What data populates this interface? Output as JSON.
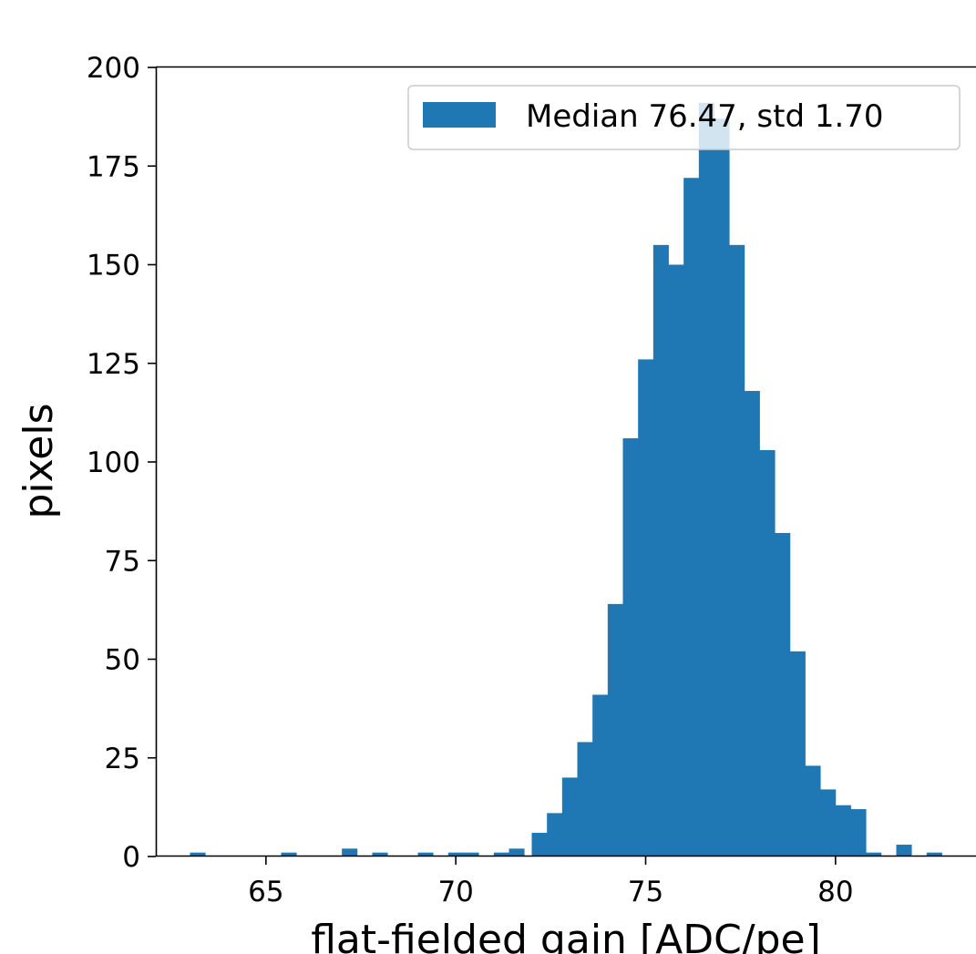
{
  "chart_data": {
    "type": "bar",
    "title": "",
    "xlabel": "flat-fielded gain [ADC/pe]",
    "ylabel": "pixels",
    "xlim": [
      62.1,
      83.7
    ],
    "ylim": [
      0,
      200
    ],
    "xticks": [
      65,
      70,
      75,
      80
    ],
    "yticks": [
      0,
      25,
      50,
      75,
      100,
      125,
      150,
      175,
      200
    ],
    "bin_width": 0.4,
    "grid": false,
    "legend_position": "upper-right",
    "series": [
      {
        "name": "Median 76.47, std 1.70",
        "color": "#1f77b4",
        "bins": [
          {
            "x": 63.0,
            "count": 1
          },
          {
            "x": 65.4,
            "count": 1
          },
          {
            "x": 67.0,
            "count": 2
          },
          {
            "x": 67.8,
            "count": 1
          },
          {
            "x": 69.0,
            "count": 1
          },
          {
            "x": 69.8,
            "count": 1
          },
          {
            "x": 70.2,
            "count": 1
          },
          {
            "x": 71.0,
            "count": 1
          },
          {
            "x": 71.4,
            "count": 2
          },
          {
            "x": 72.0,
            "count": 6
          },
          {
            "x": 72.4,
            "count": 11
          },
          {
            "x": 72.8,
            "count": 20
          },
          {
            "x": 73.2,
            "count": 29
          },
          {
            "x": 73.6,
            "count": 41
          },
          {
            "x": 74.0,
            "count": 64
          },
          {
            "x": 74.4,
            "count": 106
          },
          {
            "x": 74.8,
            "count": 126
          },
          {
            "x": 75.2,
            "count": 155
          },
          {
            "x": 75.6,
            "count": 150
          },
          {
            "x": 76.0,
            "count": 172
          },
          {
            "x": 76.4,
            "count": 191
          },
          {
            "x": 76.8,
            "count": 187
          },
          {
            "x": 77.2,
            "count": 155
          },
          {
            "x": 77.6,
            "count": 118
          },
          {
            "x": 78.0,
            "count": 103
          },
          {
            "x": 78.4,
            "count": 82
          },
          {
            "x": 78.8,
            "count": 52
          },
          {
            "x": 79.2,
            "count": 23
          },
          {
            "x": 79.6,
            "count": 17
          },
          {
            "x": 80.0,
            "count": 13
          },
          {
            "x": 80.4,
            "count": 12
          },
          {
            "x": 80.8,
            "count": 1
          },
          {
            "x": 81.6,
            "count": 3
          },
          {
            "x": 82.4,
            "count": 1
          }
        ]
      }
    ]
  }
}
